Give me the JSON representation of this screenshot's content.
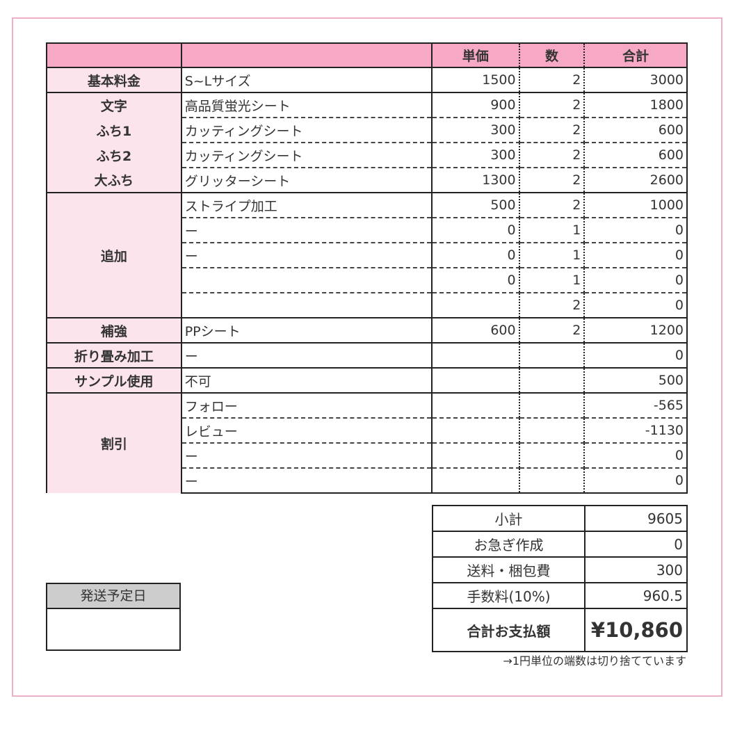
{
  "header": {
    "col_label": "",
    "col_desc": "",
    "unit_price": "単価",
    "quantity": "数",
    "total": "合計"
  },
  "colors": {
    "header_pink": "#f6a8c4",
    "label_pink": "#fce4ec",
    "frame_pink": "#eeb0c8",
    "ship_header_gray": "#cdcdcd"
  },
  "groups": [
    {
      "label": "基本料金",
      "rows": [
        {
          "desc": "S~Lサイズ",
          "price": "1500",
          "qty": "2",
          "total": "3000"
        }
      ]
    },
    {
      "label": "",
      "rows": [
        {
          "label": "文字",
          "desc": "高品質蛍光シート",
          "price": "900",
          "qty": "2",
          "total": "1800"
        },
        {
          "label": "ふち1",
          "desc": "カッティングシート",
          "price": "300",
          "qty": "2",
          "total": "600"
        },
        {
          "label": "ふち2",
          "desc": "カッティングシート",
          "price": "300",
          "qty": "2",
          "total": "600"
        },
        {
          "label": "大ふち",
          "desc": "グリッターシート",
          "price": "1300",
          "qty": "2",
          "total": "2600"
        }
      ]
    },
    {
      "label": "追加",
      "rows": [
        {
          "desc": "ストライプ加工",
          "price": "500",
          "qty": "2",
          "total": "1000"
        },
        {
          "desc": "ー",
          "price": "0",
          "qty": "1",
          "total": "0"
        },
        {
          "desc": "ー",
          "price": "0",
          "qty": "1",
          "total": "0"
        },
        {
          "desc": "",
          "price": "0",
          "qty": "1",
          "total": "0"
        },
        {
          "desc": "",
          "price": "",
          "qty": "2",
          "total": "0"
        }
      ]
    },
    {
      "label": "補強",
      "rows": [
        {
          "desc": "PPシート",
          "price": "600",
          "qty": "2",
          "total": "1200"
        }
      ]
    },
    {
      "label": "折り畳み加工",
      "rows": [
        {
          "desc": "ー",
          "price": "",
          "qty": "",
          "total": "0"
        }
      ]
    },
    {
      "label": "サンプル使用",
      "rows": [
        {
          "desc": "不可",
          "price": "",
          "qty": "",
          "total": "500"
        }
      ]
    },
    {
      "label": "割引",
      "rows": [
        {
          "desc": "フォロー",
          "price": "",
          "qty": "",
          "total": "-565"
        },
        {
          "desc": "レビュー",
          "price": "",
          "qty": "",
          "total": "-1130"
        },
        {
          "desc": "ー",
          "price": "",
          "qty": "",
          "total": "0"
        },
        {
          "desc": "ー",
          "price": "",
          "qty": "",
          "total": "0"
        }
      ]
    }
  ],
  "summary": [
    {
      "label": "小計",
      "value": "9605"
    },
    {
      "label": "お急ぎ作成",
      "value": "0"
    },
    {
      "label": "送料・梱包費",
      "value": "300"
    },
    {
      "label": "手数料(10%)",
      "value": "960.5"
    }
  ],
  "grand_total": {
    "label": "合計お支払額",
    "value": "¥10,860"
  },
  "note": "→1円単位の端数は切り捨てています",
  "shipping": {
    "label": "発送予定日",
    "value": ""
  }
}
